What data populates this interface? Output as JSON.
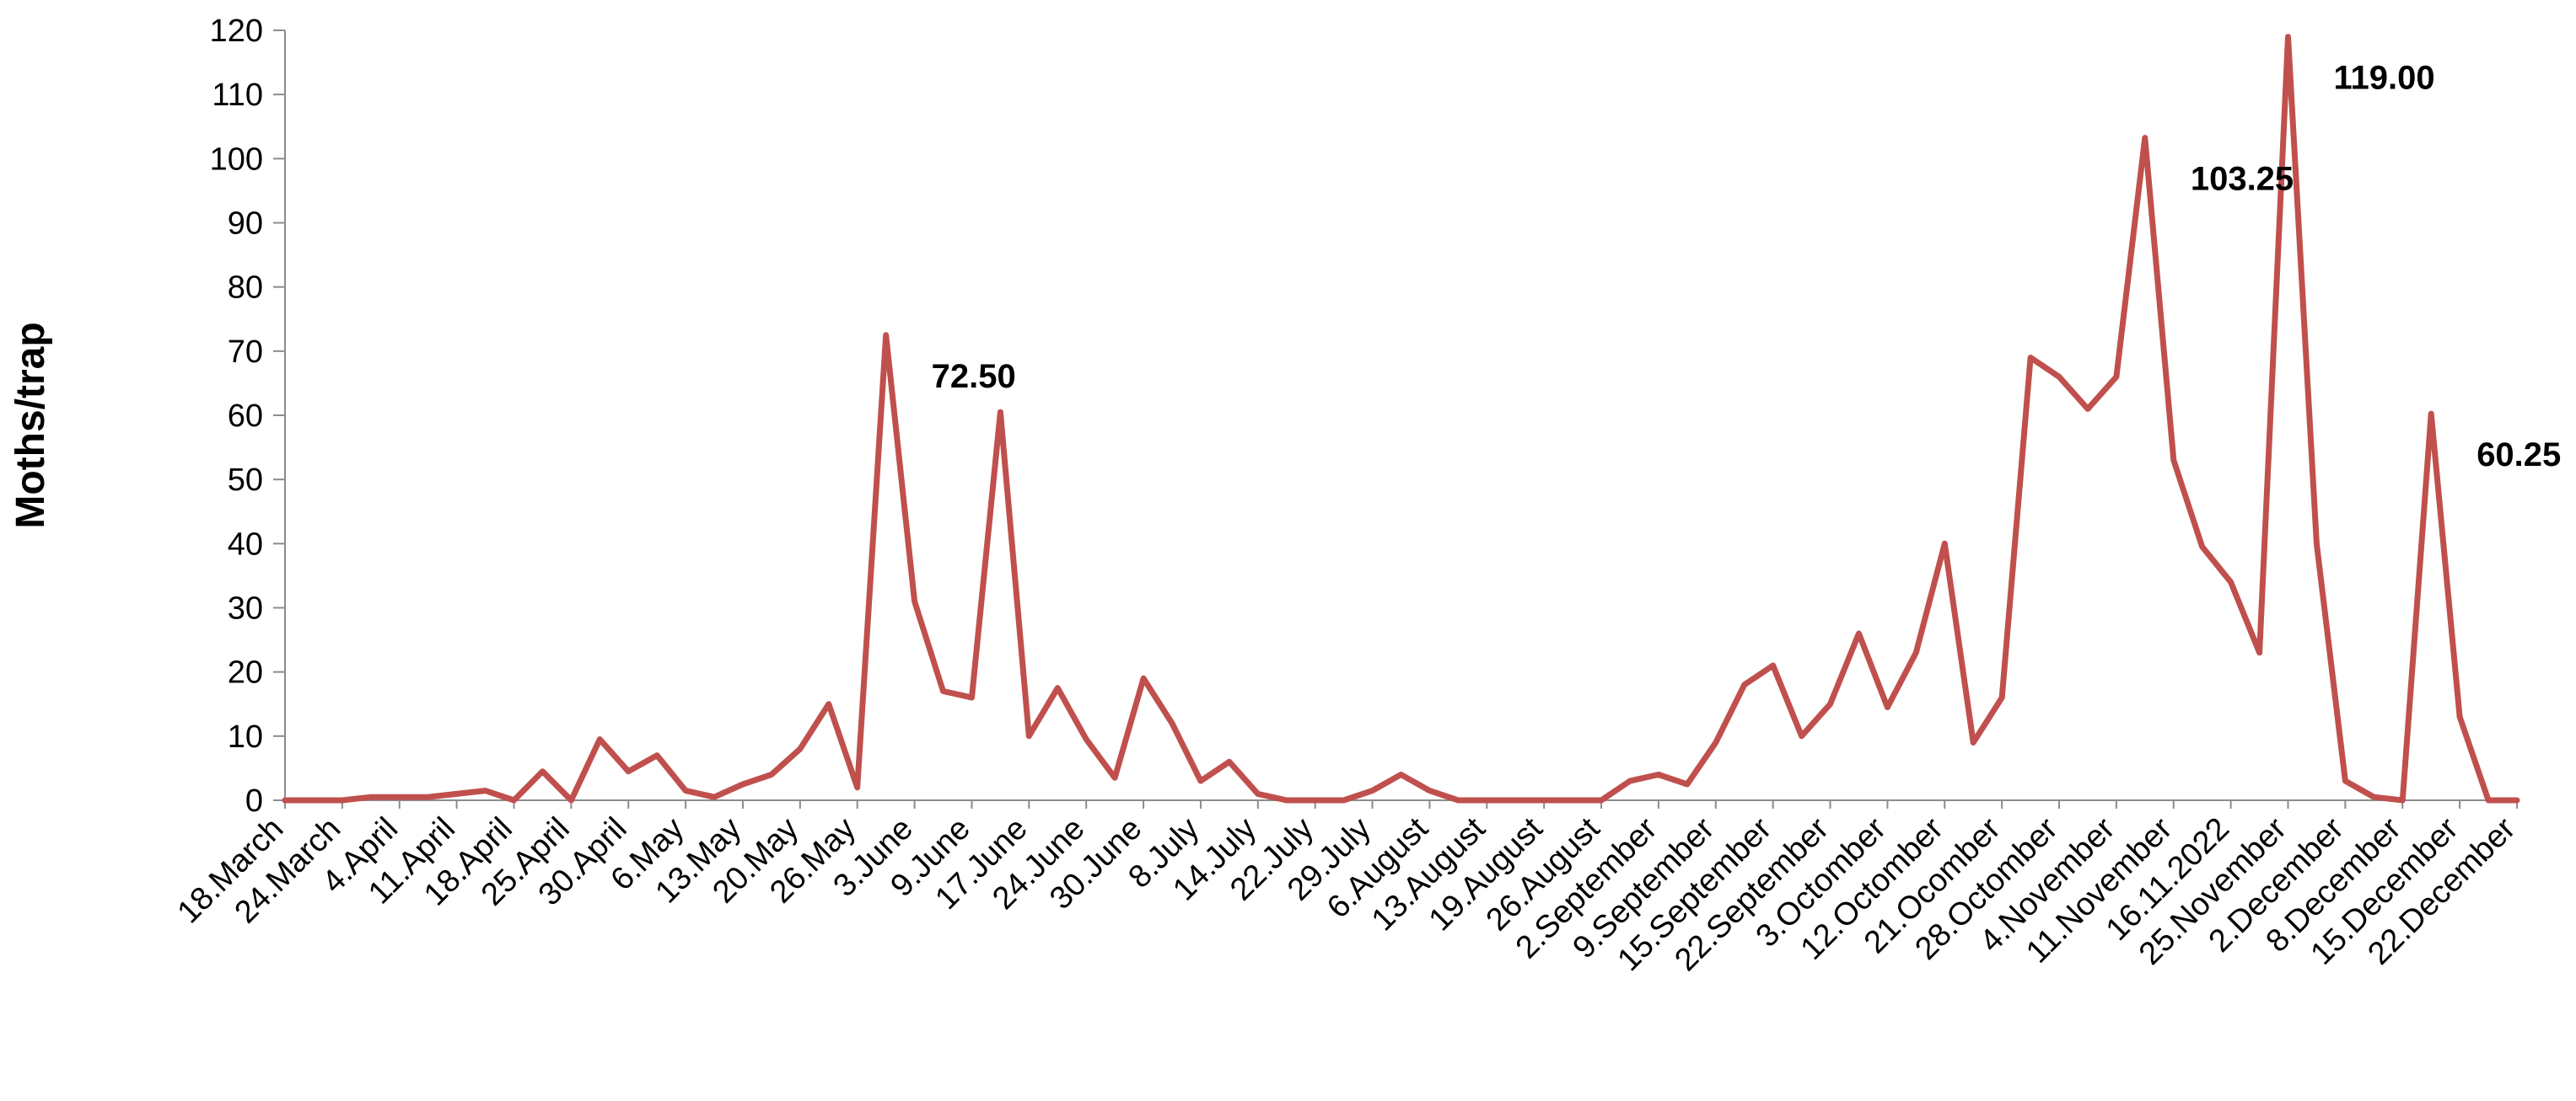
{
  "chart_data": {
    "type": "line",
    "ylabel": "Moths/trap",
    "xlabel": "",
    "ylim": [
      0,
      120
    ],
    "yticks": [
      0,
      10,
      20,
      30,
      40,
      50,
      60,
      70,
      80,
      90,
      100,
      110,
      120
    ],
    "grid": false,
    "legend": "none",
    "line_color": "#C0504D",
    "x_labels": [
      "18.March",
      "24.March",
      "4.April",
      "11.April",
      "18.April",
      "25.April",
      "30.April",
      "6.May",
      "13.May",
      "20.May",
      "26.May",
      "3.June",
      "9.June",
      "17.June",
      "24.June",
      "30.June",
      "8.July",
      "14.July",
      "22.July",
      "29.July",
      "6.August",
      "13.August",
      "19.August",
      "26.August",
      "2.September",
      "9.September",
      "15.September",
      "22.September",
      "3.Octomber",
      "12.Octomber",
      "21.Ocomber",
      "28.Octomber",
      "4.November",
      "11.November",
      "16.11.2022",
      "25.November",
      "2.December",
      "8.December",
      "15.December",
      "22.December"
    ],
    "values": [
      0,
      0,
      0,
      0.5,
      0.5,
      0.5,
      1,
      1.5,
      0,
      4.5,
      0,
      9.5,
      4.5,
      7,
      1.5,
      0.5,
      2.5,
      4,
      8,
      15,
      2,
      72.5,
      31,
      17,
      16,
      60.5,
      10,
      17.5,
      9.5,
      3.5,
      19,
      12,
      3,
      6,
      1,
      0,
      0,
      0,
      1.5,
      4,
      1.5,
      0,
      0,
      0,
      0,
      0,
      0,
      3,
      4,
      2.5,
      9,
      18,
      21,
      10,
      15,
      26,
      14.5,
      23,
      40,
      9,
      16,
      69,
      66,
      61,
      66,
      103.25,
      53,
      39.5,
      34,
      23,
      119,
      40,
      3,
      0.5,
      0,
      60.25,
      13,
      0,
      0
    ],
    "annotations": [
      {
        "text": "72.50",
        "index": 21
      },
      {
        "text": "103.25",
        "index": 65
      },
      {
        "text": "119.00",
        "index": 70
      },
      {
        "text": "60.25",
        "index": 75
      }
    ]
  }
}
